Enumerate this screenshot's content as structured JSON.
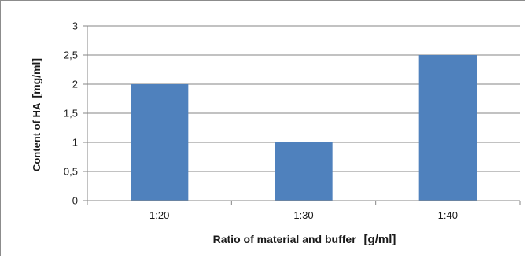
{
  "chart_data": {
    "type": "bar",
    "title": "",
    "categories": [
      "1:20",
      "1:30",
      "1:40"
    ],
    "values": [
      2,
      1,
      2.5
    ],
    "ylim": [
      0,
      3
    ],
    "yticks": [
      0,
      0.5,
      1,
      1.5,
      2,
      2.5,
      3
    ],
    "ytick_labels": [
      "0",
      "0,5",
      "1",
      "1,5",
      "2",
      "2,5",
      "3"
    ],
    "xlabel": "Ratio of material and buffer",
    "xlabel_unit": "[g/ml]",
    "ylabel": "Content of HA",
    "ylabel_unit": "[mg/ml]",
    "grid": true,
    "legend": false,
    "bar_color": "#4f81bd",
    "grid_color": "#868686"
  }
}
